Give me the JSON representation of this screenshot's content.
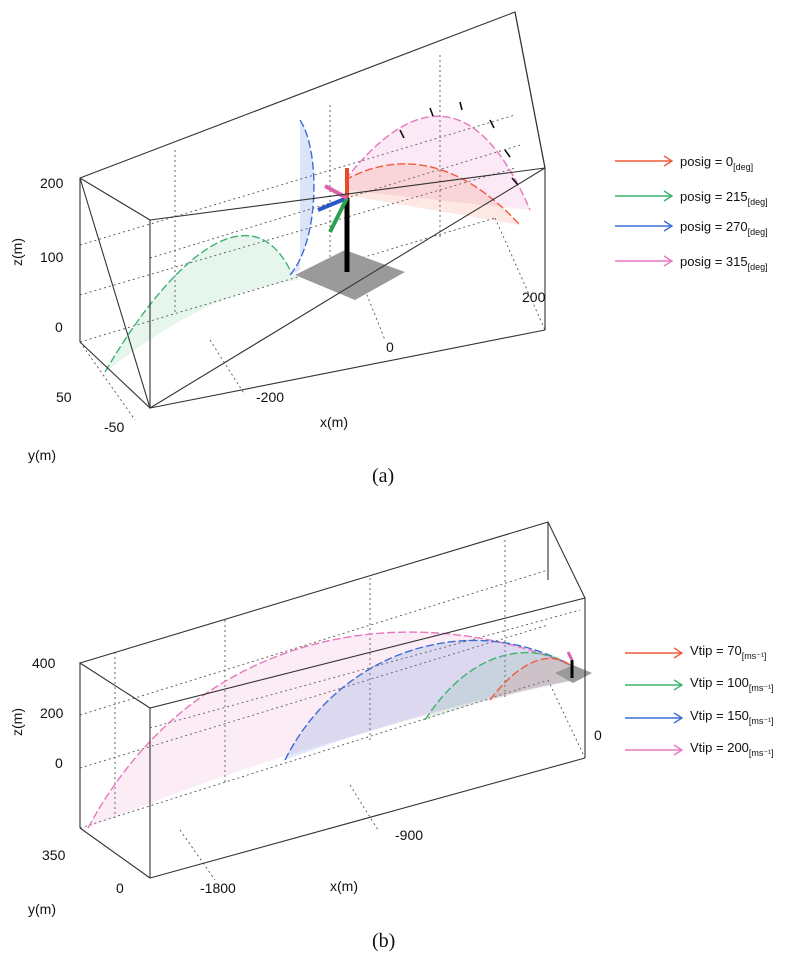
{
  "chart_data": [
    {
      "type": "line",
      "caption": "(a)",
      "xlabel": "x(m)",
      "ylabel": "y(m)",
      "zlabel": "z(m)",
      "x_ticks": [
        "-200",
        "0",
        "200"
      ],
      "y_ticks": [
        "50",
        "-50"
      ],
      "z_ticks": [
        "200",
        "100",
        "0"
      ],
      "xlim": [
        -350,
        300
      ],
      "ylim": [
        -50,
        50
      ],
      "zlim": [
        -20,
        230
      ],
      "legend_position": "right",
      "series": [
        {
          "name": "posig = 0",
          "unit": "[deg]",
          "color": "#f05a3c"
        },
        {
          "name": "posig = 215",
          "unit": "[deg]",
          "color": "#3cb46e"
        },
        {
          "name": "posig = 270",
          "unit": "[deg]",
          "color": "#3c6ed2"
        },
        {
          "name": "posig = 315",
          "unit": "[deg]",
          "color": "#e678be"
        }
      ]
    },
    {
      "type": "line",
      "caption": "(b)",
      "xlabel": "x(m)",
      "ylabel": "y(m)",
      "zlabel": "z(m)",
      "x_ticks": [
        "-1800",
        "-900",
        "0"
      ],
      "y_ticks": [
        "350",
        "0"
      ],
      "z_ticks": [
        "400",
        "200",
        "0"
      ],
      "xlim": [
        -2100,
        100
      ],
      "ylim": [
        0,
        350
      ],
      "zlim": [
        -50,
        430
      ],
      "legend_position": "right",
      "series": [
        {
          "name": "Vtip = 70",
          "unit": "[ms⁻¹]",
          "color": "#f05a3c"
        },
        {
          "name": "Vtip = 100",
          "unit": "[ms⁻¹]",
          "color": "#3cb46e"
        },
        {
          "name": "Vtip = 150",
          "unit": "[ms⁻¹]",
          "color": "#3c6ed2"
        },
        {
          "name": "Vtip = 200",
          "unit": "[ms⁻¹]",
          "color": "#e678be"
        }
      ]
    }
  ]
}
